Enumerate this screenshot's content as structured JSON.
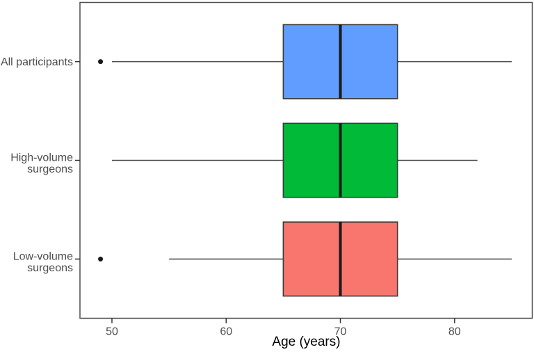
{
  "figure": {
    "background": "#ffffff"
  },
  "chart_data": {
    "type": "boxplot",
    "orientation": "horizontal",
    "title": "",
    "xlabel": "Age (years)",
    "ylabel": "",
    "xlim": [
      47.2,
      86.8
    ],
    "x_ticks": [
      "50",
      "60",
      "70",
      "80"
    ],
    "x_tick_values": [
      50,
      60,
      70,
      80
    ],
    "grid": "off",
    "legend": "none",
    "categories": [
      "All participants",
      "High-volume\nsurgeons",
      "Low-volume\nsurgeons"
    ],
    "series": [
      {
        "name": "All participants",
        "slug": "all-participants",
        "min": 50,
        "q1": 65,
        "median": 70,
        "q3": 75,
        "max": 85,
        "outliers": [
          49
        ],
        "fill": "#619CFF"
      },
      {
        "name": "High-volume surgeons",
        "slug": "high-volume-surgeons",
        "min": 50,
        "q1": 65,
        "median": 70,
        "q3": 75,
        "max": 82,
        "outliers": [],
        "fill": "#00BA38"
      },
      {
        "name": "Low-volume surgeons",
        "slug": "low-volume-surgeons",
        "min": 55,
        "q1": 65,
        "median": 70,
        "q3": 75,
        "max": 85,
        "outliers": [
          49
        ],
        "fill": "#F8766D"
      }
    ],
    "colors": {
      "panel_border": "#4d4d4d",
      "whisker": "#4a4a4a",
      "box_border": "#3a3a3a",
      "median": "#1a1a1a",
      "outlier": "#1a1a1a",
      "tick": "#333333",
      "tick_label": "#4d4d4d",
      "category_label": "#4d4d4d",
      "axis_title": "#000000"
    }
  }
}
